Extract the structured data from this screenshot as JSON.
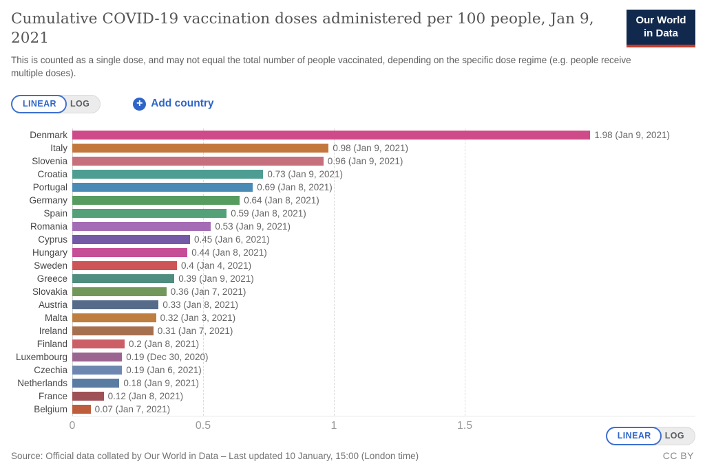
{
  "header": {
    "title": "Cumulative COVID-19 vaccination doses administered per 100 people, Jan 9, 2021",
    "subtitle": "This is counted as a single dose, and may not equal the total number of people vaccinated, depending on the specific dose regime (e.g. people receive multiple doses).",
    "logo": {
      "line1": "Our World",
      "line2": "in Data"
    }
  },
  "controls": {
    "linear_label": "LINEAR",
    "log_label": "LOG",
    "add_country_label": "Add country"
  },
  "chart_data": {
    "type": "bar",
    "orientation": "horizontal",
    "title": "Cumulative COVID-19 vaccination doses administered per 100 people, Jan 9, 2021",
    "xlabel": "",
    "ylabel": "",
    "xlim": [
      0,
      2.38
    ],
    "x_ticks": [
      0,
      0.5,
      1,
      1.5
    ],
    "grid": true,
    "categories": [
      "Denmark",
      "Italy",
      "Slovenia",
      "Croatia",
      "Portugal",
      "Germany",
      "Spain",
      "Romania",
      "Cyprus",
      "Hungary",
      "Sweden",
      "Greece",
      "Slovakia",
      "Austria",
      "Malta",
      "Ireland",
      "Finland",
      "Luxembourg",
      "Czechia",
      "Netherlands",
      "France",
      "Belgium"
    ],
    "values": [
      1.98,
      0.98,
      0.96,
      0.73,
      0.69,
      0.64,
      0.59,
      0.53,
      0.45,
      0.44,
      0.4,
      0.39,
      0.36,
      0.33,
      0.32,
      0.31,
      0.2,
      0.19,
      0.19,
      0.18,
      0.12,
      0.07
    ],
    "value_labels": [
      "1.98 (Jan 9, 2021)",
      "0.98 (Jan 9, 2021)",
      "0.96 (Jan 9, 2021)",
      "0.73 (Jan 9, 2021)",
      "0.69 (Jan 8, 2021)",
      "0.64 (Jan 8, 2021)",
      "0.59 (Jan 8, 2021)",
      "0.53 (Jan 9, 2021)",
      "0.45 (Jan 6, 2021)",
      "0.44 (Jan 8, 2021)",
      "0.4 (Jan 4, 2021)",
      "0.39 (Jan 9, 2021)",
      "0.36 (Jan 7, 2021)",
      "0.33 (Jan 8, 2021)",
      "0.32 (Jan 3, 2021)",
      "0.31 (Jan 7, 2021)",
      "0.2 (Jan 8, 2021)",
      "0.19 (Dec 30, 2020)",
      "0.19 (Jan 6, 2021)",
      "0.18 (Jan 9, 2021)",
      "0.12 (Jan 8, 2021)",
      "0.07 (Jan 7, 2021)"
    ],
    "colors": [
      "#cf4a89",
      "#c3773d",
      "#c66f7d",
      "#4e9d92",
      "#4a8bb5",
      "#579c5f",
      "#53a079",
      "#a46cb5",
      "#7459a7",
      "#c54e96",
      "#cf5457",
      "#4e8d80",
      "#71985a",
      "#566b8a",
      "#bd7e3f",
      "#a66f4e",
      "#cb5e66",
      "#9c6490",
      "#6e87b0",
      "#5a7ca3",
      "#9e5156",
      "#bd5d3b"
    ],
    "legend": null
  },
  "footer": {
    "source": "Source: Official data collated by Our World in Data – Last updated 10 January, 15:00 (London time)",
    "license": "CC BY"
  }
}
